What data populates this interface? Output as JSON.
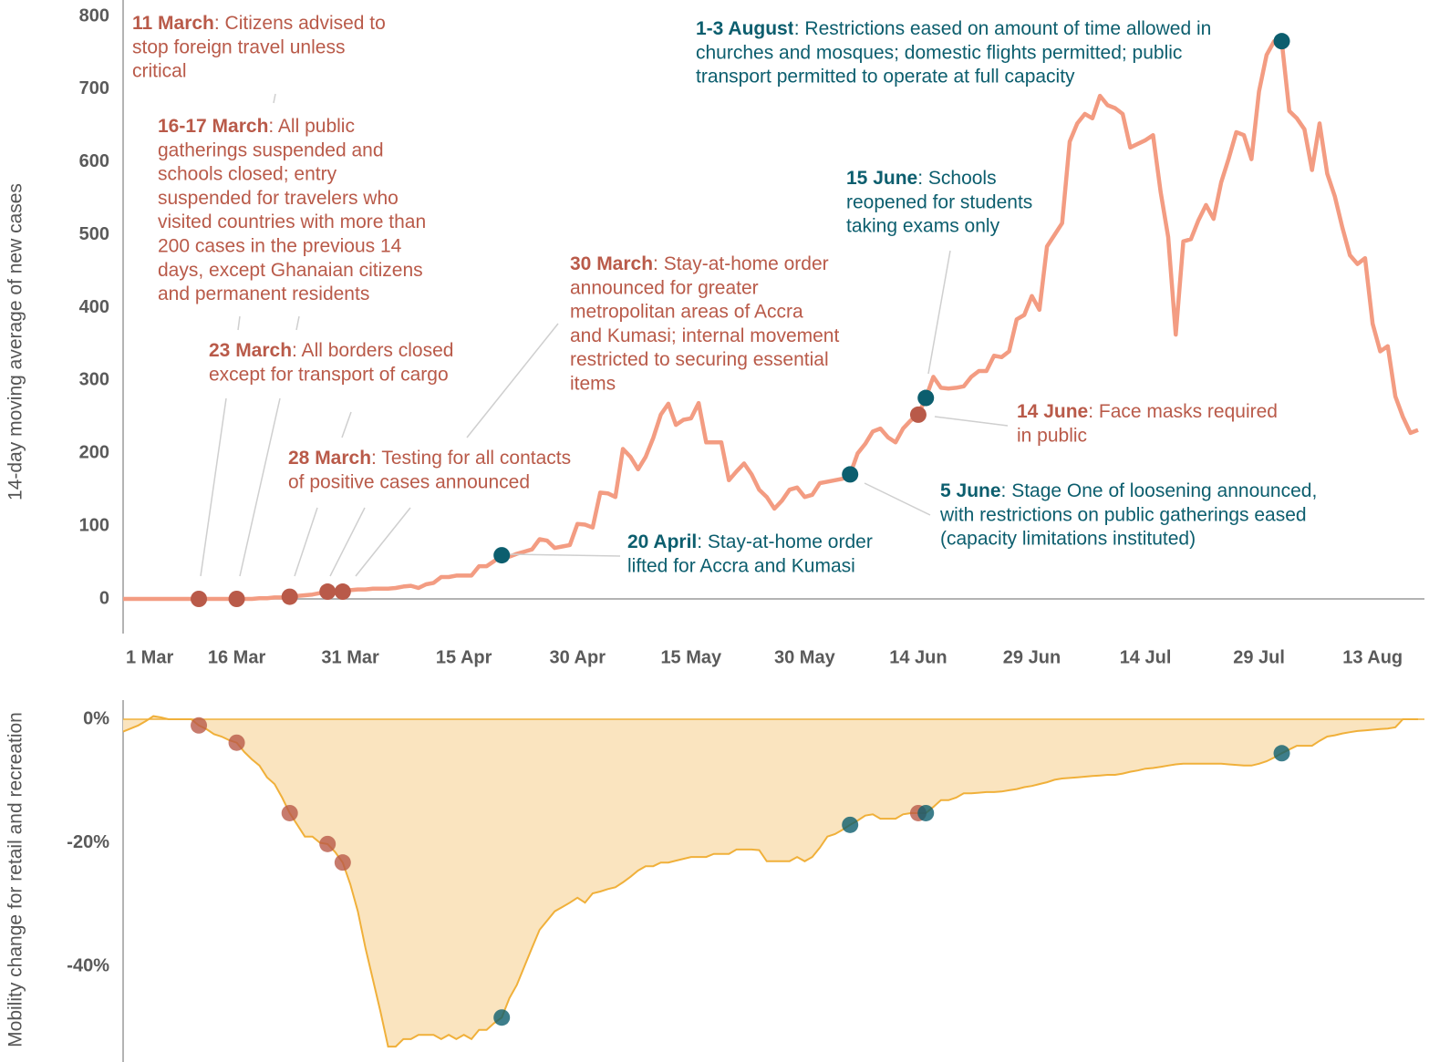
{
  "chart_data": [
    {
      "type": "line",
      "y_label": "14-day moving average of new cases",
      "color": "#f39c82",
      "x": [
        "1 Mar",
        "2 Mar",
        "3 Mar",
        "4 Mar",
        "5 Mar",
        "6 Mar",
        "7 Mar",
        "8 Mar",
        "9 Mar",
        "10 Mar",
        "11 Mar",
        "12 Mar",
        "13 Mar",
        "14 Mar",
        "15 Mar",
        "16 Mar",
        "17 Mar",
        "18 Mar",
        "19 Mar",
        "20 Mar",
        "21 Mar",
        "22 Mar",
        "23 Mar",
        "24 Mar",
        "25 Mar",
        "26 Mar",
        "27 Mar",
        "28 Mar",
        "29 Mar",
        "30 Mar",
        "31 Mar",
        "1 Apr",
        "2 Apr",
        "3 Apr",
        "4 Apr",
        "5 Apr",
        "6 Apr",
        "7 Apr",
        "8 Apr",
        "9 Apr",
        "10 Apr",
        "11 Apr",
        "12 Apr",
        "13 Apr",
        "14 Apr",
        "15 Apr",
        "16 Apr",
        "17 Apr",
        "18 Apr",
        "19 Apr",
        "20 Apr",
        "21 Apr",
        "22 Apr",
        "23 Apr",
        "24 Apr",
        "25 Apr",
        "26 Apr",
        "27 Apr",
        "28 Apr",
        "29 Apr",
        "30 Apr",
        "1 May",
        "2 May",
        "3 May",
        "4 May",
        "5 May",
        "6 May",
        "7 May",
        "8 May",
        "9 May",
        "10 May",
        "11 May",
        "12 May",
        "13 May",
        "14 May",
        "15 May",
        "16 May",
        "17 May",
        "18 May",
        "19 May",
        "20 May",
        "21 May",
        "22 May",
        "23 May",
        "24 May",
        "25 May",
        "26 May",
        "27 May",
        "28 May",
        "29 May",
        "30 May",
        "31 May",
        "1 Jun",
        "2 Jun",
        "3 Jun",
        "4 Jun",
        "5 Jun",
        "6 Jun",
        "7 Jun",
        "8 Jun",
        "9 Jun",
        "10 Jun",
        "11 Jun",
        "12 Jun",
        "13 Jun",
        "14 Jun",
        "15 Jun",
        "16 Jun",
        "17 Jun",
        "18 Jun",
        "19 Jun",
        "20 Jun",
        "21 Jun",
        "22 Jun",
        "23 Jun",
        "24 Jun",
        "25 Jun",
        "26 Jun",
        "27 Jun",
        "28 Jun",
        "29 Jun",
        "30 Jun",
        "1 Jul",
        "2 Jul",
        "3 Jul",
        "4 Jul",
        "5 Jul",
        "6 Jul",
        "7 Jul",
        "8 Jul",
        "9 Jul",
        "10 Jul",
        "11 Jul",
        "12 Jul",
        "13 Jul",
        "14 Jul",
        "15 Jul",
        "16 Jul",
        "17 Jul",
        "18 Jul",
        "19 Jul",
        "20 Jul",
        "21 Jul",
        "22 Jul",
        "23 Jul",
        "24 Jul",
        "25 Jul",
        "26 Jul",
        "27 Jul",
        "28 Jul",
        "29 Jul",
        "30 Jul",
        "31 Jul",
        "1 Aug",
        "2 Aug",
        "3 Aug",
        "4 Aug",
        "5 Aug",
        "6 Aug",
        "7 Aug",
        "8 Aug",
        "9 Aug",
        "10 Aug",
        "11 Aug",
        "12 Aug",
        "13 Aug",
        "14 Aug",
        "15 Aug",
        "16 Aug",
        "17 Aug",
        "18 Aug",
        "19 Aug"
      ],
      "values": [
        0,
        0,
        0,
        0,
        0,
        0,
        0,
        0,
        0,
        0,
        0,
        0,
        0,
        0,
        0,
        0,
        0,
        0,
        1,
        1,
        2,
        2,
        3,
        4,
        5,
        6,
        8,
        10,
        10,
        10,
        12,
        13,
        13,
        14,
        14,
        14,
        15,
        17,
        18,
        15,
        20,
        22,
        30,
        30,
        32,
        32,
        32,
        45,
        45,
        52,
        60,
        58,
        62,
        65,
        68,
        82,
        80,
        70,
        72,
        74,
        103,
        102,
        98,
        146,
        145,
        140,
        206,
        195,
        178,
        195,
        221,
        253,
        268,
        239,
        246,
        248,
        269,
        215,
        215,
        215,
        163,
        175,
        186,
        171,
        150,
        140,
        124,
        135,
        150,
        153,
        140,
        143,
        159,
        161,
        163,
        165,
        171,
        200,
        213,
        230,
        234,
        222,
        215,
        234,
        245,
        253,
        276,
        305,
        290,
        289,
        290,
        292,
        305,
        313,
        313,
        334,
        332,
        340,
        384,
        390,
        416,
        397,
        484,
        500,
        516,
        628,
        653,
        666,
        660,
        691,
        678,
        674,
        666,
        620,
        625,
        630,
        637,
        559,
        497,
        363,
        491,
        494,
        520,
        541,
        522,
        572,
        605,
        641,
        637,
        604,
        697,
        747,
        766,
        766,
        670,
        660,
        645,
        589,
        653,
        584,
        553,
        510,
        472,
        460,
        468,
        378,
        340,
        347,
        278,
        250,
        228,
        232
      ],
      "ylim": [
        0,
        800
      ],
      "yticks": [
        0,
        100,
        200,
        300,
        400,
        500,
        600,
        700,
        800
      ],
      "xticks": [
        "1 Mar",
        "16 Mar",
        "31 Mar",
        "15 Apr",
        "30 Apr",
        "15 May",
        "30 May",
        "14 Jun",
        "29 Jun",
        "14 Jul",
        "29 Jul",
        "13 Aug"
      ],
      "annotations": [
        {
          "title": "11 March",
          "lines": [
            ": Citizens advised to",
            "stop foreign travel unless",
            "critical"
          ],
          "x": "11 Mar",
          "color": "#b95a49"
        },
        {
          "title": "16-17 March",
          "lines": [
            ": All public",
            "gatherings suspended and",
            "schools closed; entry",
            "suspended for travelers who",
            "visited countries with more than",
            "200 cases in the previous 14",
            "days, except Ghanaian citizens",
            "and permanent residents"
          ],
          "x": "16 Mar",
          "color": "#b95a49"
        },
        {
          "title": "23 March",
          "lines": [
            ": All borders closed",
            "except for transport of cargo"
          ],
          "x": "23 Mar",
          "color": "#b95a49"
        },
        {
          "title": "28 March",
          "lines": [
            ": Testing for all contacts",
            "of positive cases announced"
          ],
          "x": "28 Mar",
          "color": "#b95a49"
        },
        {
          "title": "30 March",
          "lines": [
            ": Stay-at-home order",
            "announced for greater",
            "metropolitan areas of Accra",
            "and Kumasi; internal movement",
            "restricted to securing essential",
            "items"
          ],
          "x": "30 Mar",
          "color": "#b95a49"
        },
        {
          "title": "20 April",
          "lines": [
            ": Stay-at-home order",
            "lifted for Accra and Kumasi"
          ],
          "x": "20 Apr",
          "color": "#0c5e6e"
        },
        {
          "title": "5 June",
          "lines": [
            ": Stage One of loosening announced,",
            "with restrictions on public gatherings eased",
            "(capacity limitations instituted)"
          ],
          "x": "5 Jun",
          "color": "#0c5e6e"
        },
        {
          "title": "14 June",
          "lines": [
            ": Face masks required",
            "in public"
          ],
          "x": "14 Jun",
          "color": "#b95a49"
        },
        {
          "title": "15 June",
          "lines": [
            ": Schools",
            "reopened for students",
            "taking exams only"
          ],
          "x": "15 Jun",
          "color": "#0c5e6e"
        },
        {
          "title": "1-3 August",
          "lines": [
            ": Restrictions eased on amount of time allowed in",
            "churches and mosques; domestic flights permitted; public",
            "transport permitted to operate at full capacity"
          ],
          "x": "1 Aug",
          "color": "#0c5e6e"
        }
      ]
    },
    {
      "type": "area",
      "y_label": "Mobility change for retail and recreation",
      "color": "#f0b03a",
      "fill": "#fae4bf",
      "x": [
        "1 Mar",
        "2 Mar",
        "3 Mar",
        "4 Mar",
        "5 Mar",
        "6 Mar",
        "7 Mar",
        "8 Mar",
        "9 Mar",
        "10 Mar",
        "11 Mar",
        "12 Mar",
        "13 Mar",
        "14 Mar",
        "15 Mar",
        "16 Mar",
        "17 Mar",
        "18 Mar",
        "19 Mar",
        "20 Mar",
        "21 Mar",
        "22 Mar",
        "23 Mar",
        "24 Mar",
        "25 Mar",
        "26 Mar",
        "27 Mar",
        "28 Mar",
        "29 Mar",
        "30 Mar",
        "31 Mar",
        "1 Apr",
        "2 Apr",
        "3 Apr",
        "4 Apr",
        "5 Apr",
        "6 Apr",
        "7 Apr",
        "8 Apr",
        "9 Apr",
        "10 Apr",
        "11 Apr",
        "12 Apr",
        "13 Apr",
        "14 Apr",
        "15 Apr",
        "16 Apr",
        "17 Apr",
        "18 Apr",
        "19 Apr",
        "20 Apr",
        "21 Apr",
        "22 Apr",
        "23 Apr",
        "24 Apr",
        "25 Apr",
        "26 Apr",
        "27 Apr",
        "28 Apr",
        "29 Apr",
        "30 Apr",
        "1 May",
        "2 May",
        "3 May",
        "4 May",
        "5 May",
        "6 May",
        "7 May",
        "8 May",
        "9 May",
        "10 May",
        "11 May",
        "12 May",
        "13 May",
        "14 May",
        "15 May",
        "16 May",
        "17 May",
        "18 May",
        "19 May",
        "20 May",
        "21 May",
        "22 May",
        "23 May",
        "24 May",
        "25 May",
        "26 May",
        "27 May",
        "28 May",
        "29 May",
        "30 May",
        "31 May",
        "1 Jun",
        "2 Jun",
        "3 Jun",
        "4 Jun",
        "5 Jun",
        "6 Jun",
        "7 Jun",
        "8 Jun",
        "9 Jun",
        "10 Jun",
        "11 Jun",
        "12 Jun",
        "13 Jun",
        "14 Jun",
        "15 Jun",
        "16 Jun",
        "17 Jun",
        "18 Jun",
        "19 Jun",
        "20 Jun",
        "21 Jun",
        "22 Jun",
        "23 Jun",
        "24 Jun",
        "25 Jun",
        "26 Jun",
        "27 Jun",
        "28 Jun",
        "29 Jun",
        "30 Jun",
        "1 Jul",
        "2 Jul",
        "3 Jul",
        "4 Jul",
        "5 Jul",
        "6 Jul",
        "7 Jul",
        "8 Jul",
        "9 Jul",
        "10 Jul",
        "11 Jul",
        "12 Jul",
        "13 Jul",
        "14 Jul",
        "15 Jul",
        "16 Jul",
        "17 Jul",
        "18 Jul",
        "19 Jul",
        "20 Jul",
        "21 Jul",
        "22 Jul",
        "23 Jul",
        "24 Jul",
        "25 Jul",
        "26 Jul",
        "27 Jul",
        "28 Jul",
        "29 Jul",
        "30 Jul",
        "31 Jul",
        "1 Aug",
        "2 Aug",
        "3 Aug",
        "4 Aug",
        "5 Aug",
        "6 Aug",
        "7 Aug",
        "8 Aug",
        "9 Aug",
        "10 Aug",
        "11 Aug",
        "12 Aug",
        "13 Aug",
        "14 Aug",
        "15 Aug",
        "16 Aug",
        "17 Aug",
        "18 Aug",
        "19 Aug"
      ],
      "values": [
        -2,
        -1.5,
        -1,
        -0.3,
        0.5,
        0.3,
        0,
        0,
        0,
        0,
        -1,
        -1.6,
        -2.4,
        -2.8,
        -3.4,
        -3.8,
        -5.3,
        -6.5,
        -7.5,
        -9.4,
        -10.5,
        -12.7,
        -15.2,
        -17.1,
        -19,
        -19,
        -20,
        -20.2,
        -21.5,
        -23.2,
        -26.7,
        -31.1,
        -37,
        -42.2,
        -47.4,
        -53,
        -53,
        -51.8,
        -51.8,
        -51.1,
        -51.1,
        -51.1,
        -51.8,
        -51.1,
        -51.8,
        -51.1,
        -51.8,
        -50.3,
        -50.3,
        -49.2,
        -48.3,
        -45.2,
        -43,
        -40,
        -37,
        -34.1,
        -32.6,
        -31.1,
        -30.4,
        -29.7,
        -28.9,
        -29.7,
        -28.2,
        -27.9,
        -27.5,
        -27.2,
        -26.4,
        -25.5,
        -24.5,
        -23.8,
        -23.8,
        -23.2,
        -23.2,
        -22.9,
        -22.6,
        -22.3,
        -22.3,
        -22.3,
        -21.8,
        -21.8,
        -21.8,
        -21.1,
        -21.1,
        -21.1,
        -21.2,
        -23,
        -23,
        -23,
        -23,
        -22.3,
        -23,
        -22.3,
        -20.8,
        -19,
        -18.6,
        -17.9,
        -17.1,
        -16.4,
        -15.6,
        -15.4,
        -16.1,
        -16.1,
        -16.1,
        -15.4,
        -15.2,
        -15.2,
        -15.2,
        -14.2,
        -13.1,
        -13.1,
        -12.7,
        -12,
        -12,
        -11.9,
        -11.8,
        -11.8,
        -11.7,
        -11.5,
        -11.3,
        -11,
        -10.8,
        -10.5,
        -10.2,
        -9.8,
        -9.6,
        -9.5,
        -9.4,
        -9.3,
        -9.2,
        -9.1,
        -9,
        -9,
        -8.8,
        -8.5,
        -8.3,
        -8,
        -7.9,
        -7.7,
        -7.5,
        -7.3,
        -7.2,
        -7.2,
        -7.2,
        -7.2,
        -7.2,
        -7.2,
        -7.3,
        -7.4,
        -7.5,
        -7.5,
        -7.2,
        -6.8,
        -6.2,
        -5.5,
        -4.9,
        -4.3,
        -4.3,
        -4.3,
        -3.5,
        -2.8,
        -2.6,
        -2.3,
        -2.1,
        -1.9,
        -1.8,
        -1.7,
        -1.6,
        -1.5,
        -1.3,
        0,
        0,
        0
      ],
      "ylim": [
        -55.5,
        3.1
      ],
      "yticks": [
        {
          "value": 0,
          "label": "0%"
        },
        {
          "value": -20,
          "label": "-20%"
        },
        {
          "value": -40,
          "label": "-40%"
        }
      ]
    }
  ]
}
